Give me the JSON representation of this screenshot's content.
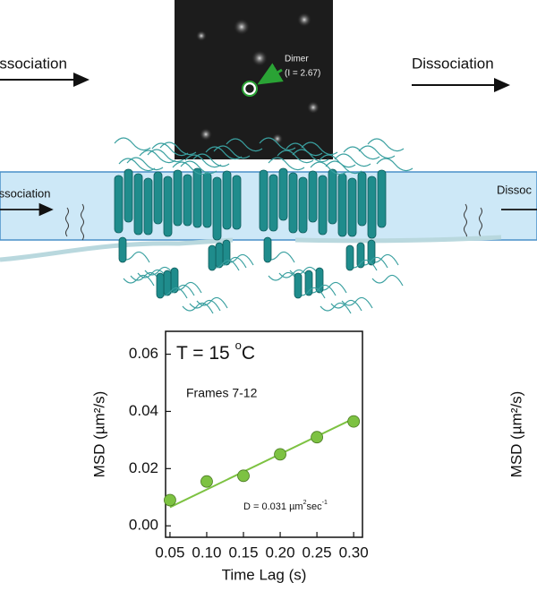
{
  "chart_data": {
    "type": "scatter",
    "title_parts": [
      "T = 15 ",
      "o",
      "C"
    ],
    "subtitle": "Frames 7-12",
    "annotation_parts": [
      "D = 0.031 µm",
      "2",
      "sec",
      "-1"
    ],
    "x_label": "Time Lag (s)",
    "y_label": "MSD (µm²/s)",
    "x": [
      0.05,
      0.1,
      0.15,
      0.2,
      0.25,
      0.3
    ],
    "values": [
      0.009,
      0.0155,
      0.0175,
      0.025,
      0.031,
      0.0365
    ],
    "color": "#7dc242",
    "fit": {
      "x": [
        0.05,
        0.3
      ],
      "values": [
        0.0065,
        0.0375
      ],
      "color": "#7dc242"
    },
    "xlim": [
      0.044,
      0.312
    ],
    "ylim": [
      -0.004,
      0.068
    ],
    "xticks": [
      0.05,
      {
        "value": 0.1,
        "label": "0.10"
      },
      0.15,
      {
        "value": 0.2,
        "label": "0.20"
      },
      0.25,
      {
        "value": 0.3,
        "label": "0.30"
      }
    ],
    "yticks": [
      {
        "value": 0,
        "label": "0.00"
      },
      0.02,
      0.04,
      0.06
    ],
    "grid": false
  },
  "figure": {
    "association_top": "Association",
    "dissociation_top": "Dissociation",
    "dimer_label": "Dimer",
    "dimer_intensity": "(I = 2.67)",
    "association_band": "Association",
    "dissociation_band": "Dissoc",
    "right_y_label": "MSD (µm²/s)"
  }
}
